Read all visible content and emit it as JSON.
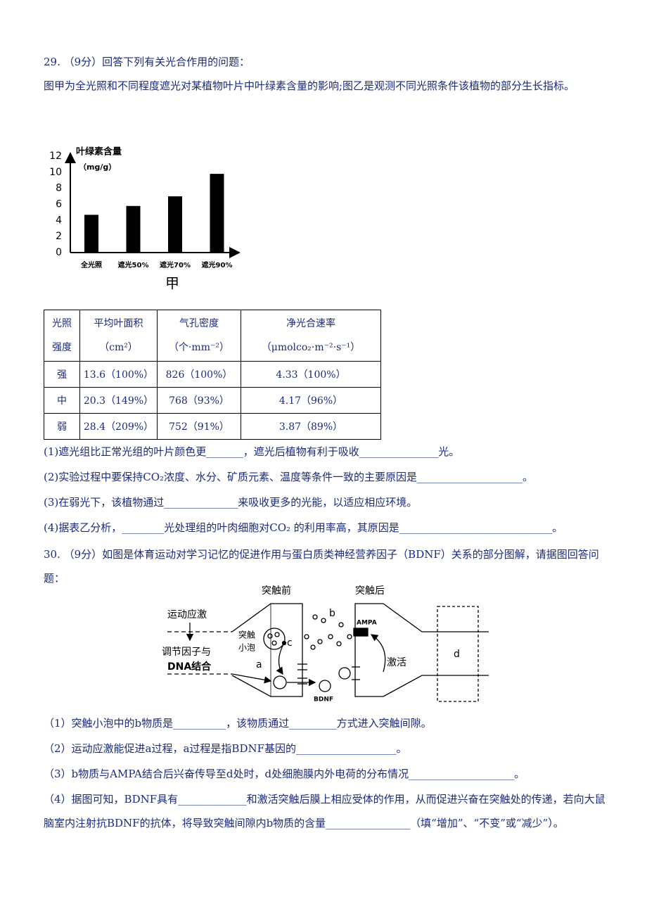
{
  "q29": {
    "heading": "29. （9分）回答下列有关光合作用的问题：",
    "intro": "图甲为全光照和不同程度遮光对某植物叶片中叶绿素含量的影响;图乙是观测不同光照条件该植物的部分生长指标。",
    "table": {
      "header": [
        [
          "光照",
          "强度"
        ],
        [
          "平均叶面积",
          "（cm²）"
        ],
        [
          "气孔密度",
          "（个·mm⁻²）"
        ],
        [
          "净光合速率",
          "（μmolco₂·m⁻²·s⁻¹）"
        ]
      ],
      "rows": [
        [
          "强",
          "13.6（100%）",
          "826（100%）",
          "4.33（100%）"
        ],
        [
          "中",
          "20.3（149%）",
          "768（93%）",
          "4.17（96%）"
        ],
        [
          "弱",
          "28.4（209%）",
          "752（91%）",
          "3.87（89%）"
        ]
      ]
    },
    "questions": [
      "(1)遮光组比正常光组的叶片颜色更_______，遮光后植物有利于吸收_______________光。",
      "(2)实验过程中要保持CO₂浓度、水分、矿质元素、温度等条件一致的主要原因是____________________。",
      "(3)在弱光下，该植物通过______________来吸收更多的光能，以适应相应环境。",
      "(4)据表乙分析，________光处理组的叶肉细胞对CO₂ 的利用率高，其原因是_____________________________。"
    ]
  },
  "chart_data": {
    "type": "bar",
    "title": "甲",
    "y_label": "叶绿素含量",
    "y_unit": "（mg/g）",
    "categories": [
      "全光照",
      "遮光50%",
      "遮光70%",
      "遮光90%"
    ],
    "values": [
      4.7,
      5.8,
      7,
      9.8
    ],
    "color": "#000000",
    "ylim": [
      0,
      12
    ],
    "yticks": [
      0,
      2,
      4,
      6,
      8,
      10,
      12
    ],
    "grid": false
  },
  "q30": {
    "heading": "30. （9分）如图是体育运动对学习记忆的促进作用与蛋白质类神经营养因子（BDNF）关系的部分图解，请据图回答问题：",
    "diagram": {
      "stress": "运动应激",
      "factor_1": "调节因子与",
      "factor_2": "DNA结合",
      "pre": "突触前",
      "post": "突触后",
      "vesicle_1": "突触",
      "vesicle_2": "小泡",
      "a": "a",
      "b": "b",
      "c": "c",
      "d": "d",
      "ampa": "AMPA",
      "bdnf": "BDNF",
      "activate": "激活"
    },
    "questions": [
      "（1）突触小泡中的b物质是__________，该物质通过_________方式进入突触间隙。",
      "（2）运动应激能促进a过程，a过程是指BDNF基因的___________________。",
      "（3）b物质与AMPA结合后兴奋传导至d处时，d处细胞膜内外电荷的分布情况____________________。",
      "（4）据图可知，BDNF具有_____________和激活突触后膜上相应受体的作用，从而促进兴奋在突触处的传递，若向大鼠脑室内注射抗BDNF的抗体，将导致突触间隙内b物质的含量________________（填“增加”、“不变”或“减少”）。"
    ]
  }
}
